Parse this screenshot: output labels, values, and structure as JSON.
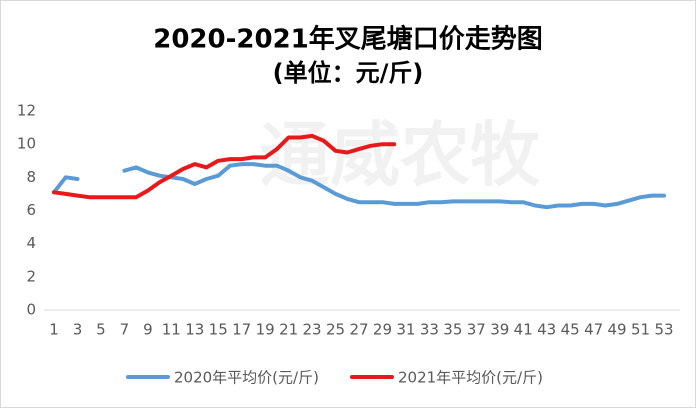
{
  "chart_data": {
    "type": "line",
    "title": "2020-2021年叉尾塘口价走势图",
    "subtitle": "(单位：元/斤)",
    "watermark": "通威农牧",
    "categories": [
      "1",
      null,
      "3",
      null,
      "5",
      null,
      "7",
      null,
      "9",
      null,
      "11",
      null,
      "13",
      null,
      "15",
      null,
      "17",
      null,
      "19",
      null,
      "21",
      null,
      "23",
      null,
      "25",
      null,
      "27",
      null,
      "29",
      null,
      "31",
      null,
      "33",
      null,
      "35",
      null,
      "37",
      null,
      "39",
      null,
      "41",
      null,
      "43",
      null,
      "45",
      null,
      "47",
      null,
      "49",
      null,
      "51",
      null,
      "53"
    ],
    "series": [
      {
        "name": "2020年平均价(元/斤)",
        "color": "#5b9bd5",
        "values": [
          7.1,
          8.0,
          7.9,
          null,
          null,
          null,
          8.4,
          8.6,
          8.3,
          8.1,
          8.0,
          7.9,
          7.6,
          7.9,
          8.1,
          8.7,
          8.8,
          8.8,
          8.7,
          8.7,
          8.4,
          8.0,
          7.8,
          7.4,
          7.0,
          6.7,
          6.5,
          6.5,
          6.5,
          6.4,
          6.4,
          6.4,
          6.5,
          6.5,
          6.55,
          6.55,
          6.55,
          6.55,
          6.55,
          6.5,
          6.5,
          6.3,
          6.2,
          6.3,
          6.3,
          6.4,
          6.4,
          6.3,
          6.4,
          6.6,
          6.8,
          6.9,
          6.9
        ]
      },
      {
        "name": "2021年平均价(元/斤)",
        "color": "#e8191b",
        "values": [
          7.1,
          7.0,
          6.9,
          6.8,
          6.8,
          6.8,
          6.8,
          6.8,
          7.2,
          7.7,
          8.1,
          8.5,
          8.8,
          8.6,
          9.0,
          9.1,
          9.1,
          9.2,
          9.2,
          9.7,
          10.4,
          10.4,
          10.5,
          10.2,
          9.6,
          9.5,
          9.7,
          9.9,
          10.0,
          10.0,
          null,
          null,
          null,
          null,
          null,
          null,
          null,
          null,
          null,
          null,
          null,
          null,
          null,
          null,
          null,
          null,
          null,
          null,
          null,
          null,
          null,
          null,
          null
        ]
      }
    ],
    "ylim": [
      0,
      12
    ],
    "yticks": [
      0,
      2,
      4,
      6,
      8,
      10,
      12
    ],
    "grid": false
  }
}
